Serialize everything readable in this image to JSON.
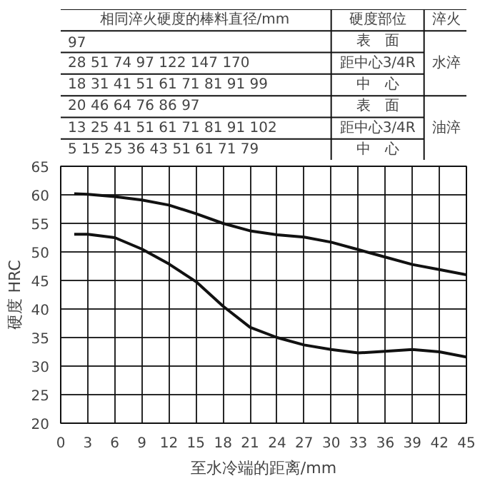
{
  "chart_data": {
    "type": "line",
    "xlabel": "至水冷端的距离/mm",
    "ylabel": "硬度 HRC",
    "xlim": [
      0,
      45
    ],
    "ylim": [
      20,
      65
    ],
    "xticks": [
      0,
      3,
      6,
      9,
      12,
      15,
      18,
      21,
      24,
      27,
      30,
      33,
      36,
      39,
      42,
      45
    ],
    "yticks": [
      20,
      25,
      30,
      35,
      40,
      45,
      50,
      55,
      60,
      65
    ],
    "grid": true,
    "series": [
      {
        "color": "#111111",
        "x": [
          1.5,
          3,
          6,
          9,
          12,
          15,
          18,
          21,
          24,
          27,
          30,
          33,
          36,
          39,
          42,
          45
        ],
        "values": [
          60.2,
          60.1,
          59.7,
          59.1,
          58.2,
          56.7,
          55,
          53.7,
          53,
          52.6,
          51.7,
          50.4,
          49.1,
          47.8,
          46.9,
          46
        ]
      },
      {
        "color": "#111111",
        "x": [
          1.5,
          3,
          6,
          9,
          12,
          15,
          18,
          21,
          24,
          27,
          30,
          33,
          36,
          39,
          42,
          45
        ],
        "values": [
          53.1,
          53.1,
          52.5,
          50.5,
          47.9,
          44.8,
          40.5,
          36.8,
          35,
          33.7,
          32.9,
          32.3,
          32.6,
          32.9,
          32.5,
          31.6
        ]
      }
    ],
    "annotations": [
      "相同淬火硬度的棒料直径/mm",
      "硬度部位",
      "淬火",
      "97",
      "表　面",
      "28 51 74 97 122 147 170",
      "距中心3/4R",
      "18 31 41 51 61 71 81 91 99",
      "中　心",
      "20 46 64 76 86 97",
      "表　面",
      "13 25 41 51 61 71 81 91 102",
      "距中心3/4R",
      "5 15 25 36 43 51 61 71 79",
      "中　心",
      "水淬",
      "油淬"
    ]
  }
}
